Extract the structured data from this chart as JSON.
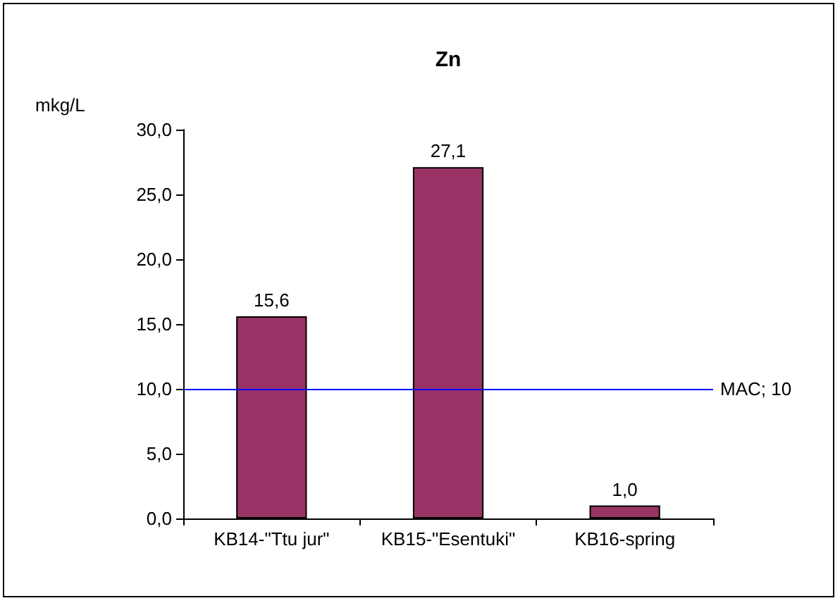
{
  "chart_data": {
    "type": "bar",
    "title": "Zn",
    "ylabel": "mkg/L",
    "categories": [
      "KB14-\"Ttu jur\"",
      "KB15-\"Esentuki\"",
      "KB16-spring"
    ],
    "values": [
      15.6,
      27.1,
      1.0
    ],
    "value_labels": [
      "15,6",
      "27,1",
      "1,0"
    ],
    "color": "#993366",
    "ylim": [
      0,
      30
    ],
    "yticks": [
      {
        "value": 0,
        "label": "0,0"
      },
      {
        "value": 5,
        "label": "5,0"
      },
      {
        "value": 10,
        "label": "10,0"
      },
      {
        "value": 15,
        "label": "15,0"
      },
      {
        "value": 20,
        "label": "20,0"
      },
      {
        "value": 25,
        "label": "25,0"
      },
      {
        "value": 30,
        "label": "30,0"
      }
    ],
    "ref_lines": [
      {
        "axis": "y",
        "value": 10,
        "label": "MAC; 10",
        "color": "#0000ff"
      }
    ]
  }
}
